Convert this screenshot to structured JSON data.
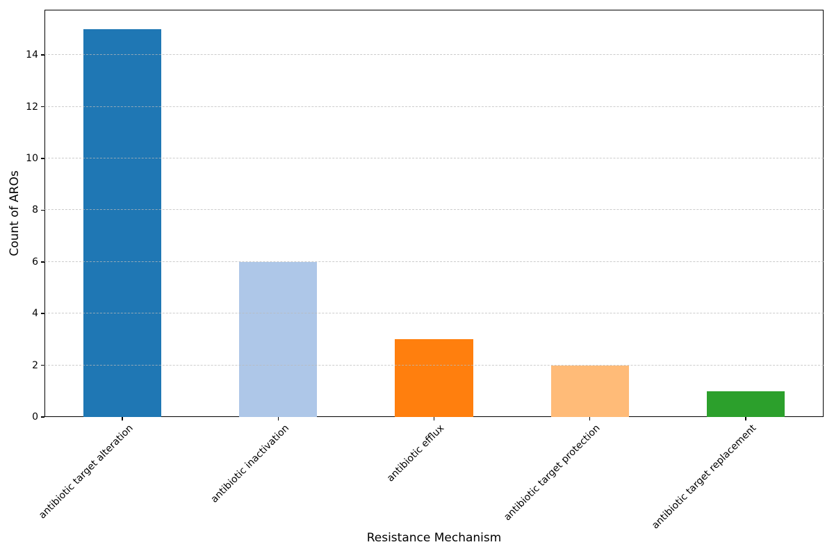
{
  "chart_data": {
    "type": "bar",
    "title": "",
    "xlabel": "Resistance Mechanism",
    "ylabel": "Count of AROs",
    "categories": [
      "antibiotic target alteration",
      "antibiotic inactivation",
      "antibiotic efflux",
      "antibiotic target protection",
      "antibiotic target replacement"
    ],
    "values": [
      15,
      6,
      3,
      2,
      1
    ],
    "bar_colors": [
      "#1f77b4",
      "#aec7e8",
      "#ff7f0e",
      "#ffbb78",
      "#2ca02c"
    ],
    "ylim": [
      0,
      15.75
    ],
    "yticks": [
      0,
      2,
      4,
      6,
      8,
      10,
      12,
      14
    ],
    "xtick_rotation_deg": 45,
    "grid": "horizontal-dashed",
    "grid_color": "#bcbcbc",
    "legend_position": "none",
    "background_color": "#ffffff",
    "text_color": "#000000"
  }
}
